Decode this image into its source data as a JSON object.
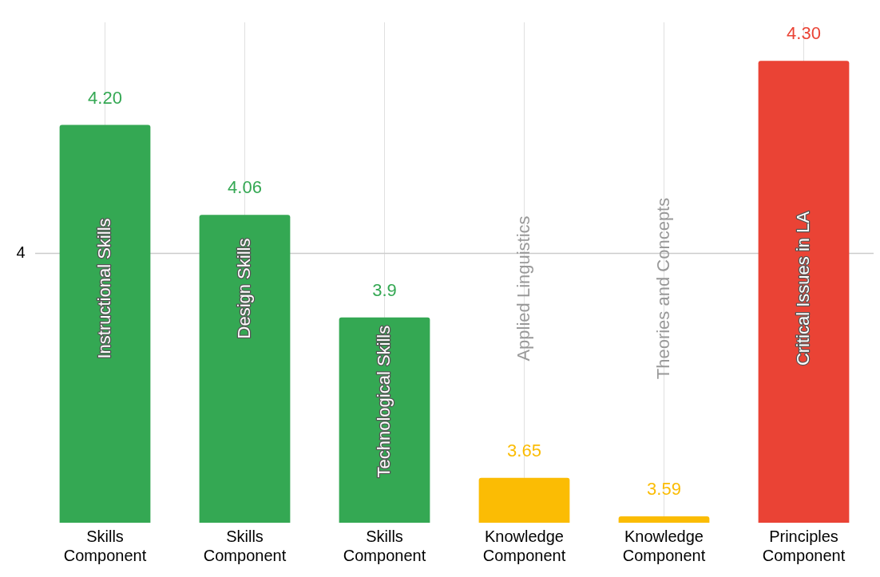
{
  "chart_data": {
    "type": "bar",
    "categories": [
      "Skills Component",
      "Skills Component",
      "Skills Component",
      "Knowledge Component",
      "Knowledge Component",
      "Principles Component"
    ],
    "values": [
      4.2,
      4.06,
      3.9,
      3.65,
      3.59,
      4.3
    ],
    "value_labels": [
      "4.20",
      "4.06",
      "3.9",
      "3.65",
      "3.59",
      "4.30"
    ],
    "colors": [
      "#34a853",
      "#34a853",
      "#34a853",
      "#fbbc04",
      "#fbbc04",
      "#ea4335"
    ],
    "ylim": [
      3.58,
      4.36
    ],
    "grid": "x",
    "legend": false,
    "ref_lines": [
      {
        "axis": "y",
        "value": 4,
        "label": "4",
        "color": "#cccccc"
      }
    ],
    "annotations": [
      "Instructional Skills",
      "Design Skills",
      "Technological Skills",
      "Applied Linguistics",
      "Theories and Concepts",
      "Critical Issues in LA"
    ]
  }
}
